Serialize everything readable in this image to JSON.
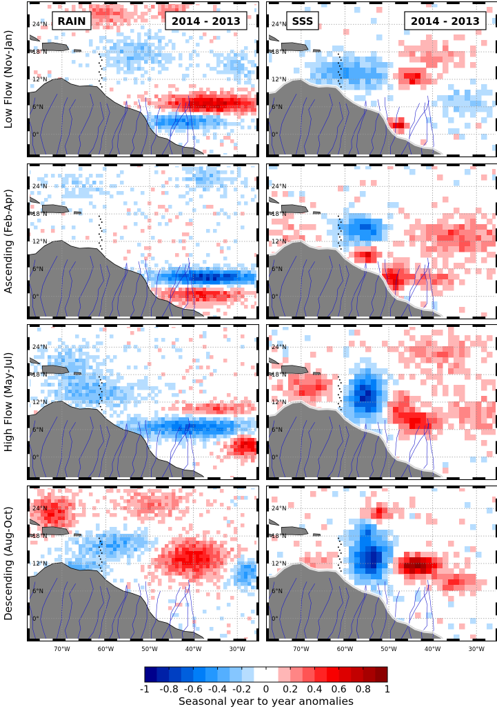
{
  "figure": {
    "panel_tags": {
      "rain": "RAIN",
      "sss": "SSS"
    },
    "period_tag": "2014 - 2013",
    "row_labels": [
      "Low Flow (Nov-Jan)",
      "Ascending (Feb-Apr)",
      "High Flow (May-Jul)",
      "Descending (Aug-Oct)"
    ],
    "colors": {
      "land": "#808080",
      "rivers": "#1a1acc",
      "coast": "#000000",
      "grid": "#999999"
    }
  },
  "chart_data": {
    "type": "heatmap",
    "map_extent": {
      "lon": [
        -78,
        -25
      ],
      "lat": [
        -5,
        29
      ]
    },
    "lat_ticks": [
      0,
      6,
      12,
      18,
      24
    ],
    "lat_tick_labels": [
      "0°",
      "6°N",
      "12°N",
      "18°N",
      "24°N"
    ],
    "lon_ticks": [
      -70,
      -60,
      -50,
      -40,
      -30
    ],
    "lon_tick_labels": [
      "70°W",
      "60°W",
      "50°W",
      "40°W",
      "30°W"
    ],
    "colormap": "blue-white-red, 20 discrete levels",
    "clim": [
      -1,
      1
    ],
    "colorbar": {
      "ticks": [
        -1,
        -0.8,
        -0.6,
        -0.4,
        -0.2,
        0,
        0.2,
        0.4,
        0.6,
        0.8,
        1
      ],
      "tick_labels": [
        "-1",
        "-0.8",
        "-0.6",
        "-0.4",
        "-0.2",
        "0",
        "0.2",
        "0.4",
        "0.6",
        "0.8",
        "1"
      ],
      "label": "Seasonal year to year anomalies"
    },
    "panels": [
      {
        "season": "Low Flow (Nov-Jan)",
        "variable": "RAIN",
        "features": [
          {
            "lon": -36,
            "lat": 6.5,
            "rx": 11,
            "ry": 2.2,
            "value": 0.7
          },
          {
            "lon": -42,
            "lat": 3,
            "rx": 10,
            "ry": 1.8,
            "value": -0.55
          },
          {
            "lon": -60,
            "lat": 26,
            "rx": 6,
            "ry": 3,
            "value": 0.3
          },
          {
            "lon": -45,
            "lat": 27,
            "rx": 5,
            "ry": 2.5,
            "value": 0.25
          },
          {
            "lon": -53,
            "lat": 18,
            "rx": 8,
            "ry": 4,
            "value": -0.25
          },
          {
            "lon": -30,
            "lat": 15,
            "rx": 6,
            "ry": 3,
            "value": -0.2
          }
        ]
      },
      {
        "season": "Low Flow (Nov-Jan)",
        "variable": "SSS",
        "features": [
          {
            "lon": -58,
            "lat": 13.5,
            "rx": 9,
            "ry": 3.5,
            "value": -0.4
          },
          {
            "lon": -45,
            "lat": 12.5,
            "rx": 3.5,
            "ry": 2,
            "value": 0.55
          },
          {
            "lon": -40,
            "lat": 17,
            "rx": 9,
            "ry": 3,
            "value": 0.2
          },
          {
            "lon": -32,
            "lat": 7,
            "rx": 6,
            "ry": 3,
            "value": -0.2
          },
          {
            "lon": -48,
            "lat": 2,
            "rx": 2,
            "ry": 1.2,
            "value": 0.6
          }
        ]
      },
      {
        "season": "Ascending (Feb-Apr)",
        "variable": "RAIN",
        "features": [
          {
            "lon": -37,
            "lat": 4,
            "rx": 12,
            "ry": 1.8,
            "value": -0.8
          },
          {
            "lon": -38,
            "lat": 0.5,
            "rx": 10,
            "ry": 2,
            "value": 0.5
          },
          {
            "lon": -37,
            "lat": 26,
            "rx": 5,
            "ry": 3,
            "value": -0.25
          },
          {
            "lon": -65,
            "lat": 24,
            "rx": 7,
            "ry": 3,
            "value": -0.15
          }
        ]
      },
      {
        "season": "Ascending (Feb-Apr)",
        "variable": "SSS",
        "features": [
          {
            "lon": -56,
            "lat": 14.5,
            "rx": 5,
            "ry": 3,
            "value": -0.6
          },
          {
            "lon": -55,
            "lat": 9,
            "rx": 2.5,
            "ry": 1.5,
            "value": 0.65
          },
          {
            "lon": -49,
            "lat": 4,
            "rx": 2.5,
            "ry": 2.5,
            "value": 0.55
          },
          {
            "lon": -34,
            "lat": 13,
            "rx": 10,
            "ry": 4,
            "value": 0.35
          },
          {
            "lon": -40,
            "lat": 4,
            "rx": 8,
            "ry": 2,
            "value": 0.3
          },
          {
            "lon": -72,
            "lat": 12,
            "rx": 5,
            "ry": 4,
            "value": 0.2
          }
        ]
      },
      {
        "season": "High Flow (May-Jul)",
        "variable": "RAIN",
        "features": [
          {
            "lon": -40,
            "lat": 6.5,
            "rx": 14,
            "ry": 2.2,
            "value": -0.6
          },
          {
            "lon": -35,
            "lat": 10.5,
            "rx": 9,
            "ry": 1.6,
            "value": 0.35
          },
          {
            "lon": -28,
            "lat": 2.5,
            "rx": 4,
            "ry": 2.5,
            "value": 0.6
          },
          {
            "lon": -62,
            "lat": 14,
            "rx": 10,
            "ry": 3,
            "value": -0.3
          },
          {
            "lon": -68,
            "lat": 20,
            "rx": 6,
            "ry": 4,
            "value": -0.25
          }
        ]
      },
      {
        "season": "High Flow (May-Jul)",
        "variable": "SSS",
        "features": [
          {
            "lon": -55,
            "lat": 13,
            "rx": 4.5,
            "ry": 5,
            "value": -0.8
          },
          {
            "lon": -43,
            "lat": 7.5,
            "rx": 4,
            "ry": 2,
            "value": 0.6
          },
          {
            "lon": -48,
            "lat": 11,
            "rx": 4,
            "ry": 3,
            "value": 0.4
          },
          {
            "lon": -68,
            "lat": 15,
            "rx": 6,
            "ry": 3,
            "value": 0.4
          },
          {
            "lon": -38,
            "lat": 22,
            "rx": 10,
            "ry": 5,
            "value": 0.2
          },
          {
            "lon": -30,
            "lat": 10,
            "rx": 6,
            "ry": 4,
            "value": 0.25
          }
        ]
      },
      {
        "season": "Descending (Aug-Oct)",
        "variable": "RAIN",
        "features": [
          {
            "lon": -40,
            "lat": 13,
            "rx": 8,
            "ry": 4,
            "value": 0.55
          },
          {
            "lon": -28,
            "lat": 10,
            "rx": 4,
            "ry": 3,
            "value": -0.45
          },
          {
            "lon": -72,
            "lat": 23,
            "rx": 5,
            "ry": 4,
            "value": 0.45
          },
          {
            "lon": -58,
            "lat": 16,
            "rx": 9,
            "ry": 3,
            "value": -0.35
          },
          {
            "lon": -50,
            "lat": 25,
            "rx": 8,
            "ry": 3,
            "value": 0.25
          },
          {
            "lon": -66,
            "lat": 11,
            "rx": 6,
            "ry": 2,
            "value": -0.3
          }
        ]
      },
      {
        "season": "Descending (Aug-Oct)",
        "variable": "SSS",
        "features": [
          {
            "lon": -54,
            "lat": 13,
            "rx": 4.5,
            "ry": 4.5,
            "value": -0.85
          },
          {
            "lon": -44,
            "lat": 11.5,
            "rx": 5,
            "ry": 2.3,
            "value": 0.9
          },
          {
            "lon": -35,
            "lat": 8,
            "rx": 5,
            "ry": 2,
            "value": 0.4
          },
          {
            "lon": -52,
            "lat": 23,
            "rx": 3,
            "ry": 2,
            "value": 0.45
          },
          {
            "lon": -65,
            "lat": 12,
            "rx": 5,
            "ry": 3,
            "value": 0.2
          },
          {
            "lon": -55,
            "lat": 19,
            "rx": 3,
            "ry": 2,
            "value": -0.4
          }
        ]
      }
    ]
  }
}
